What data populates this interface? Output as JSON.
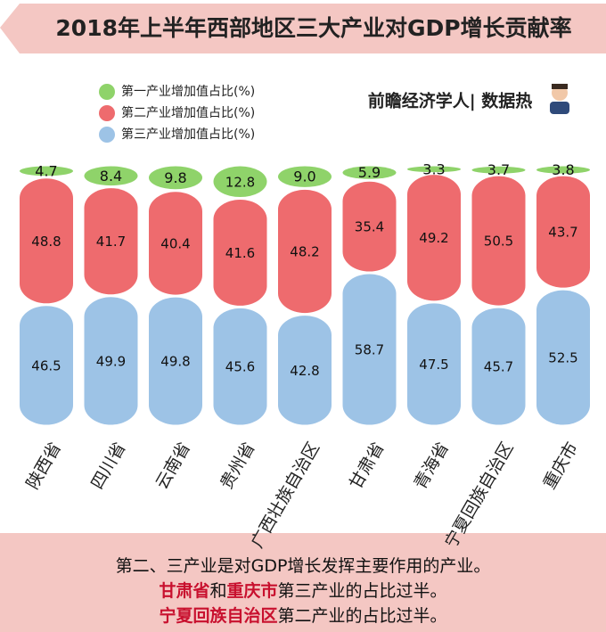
{
  "chart_data": {
    "type": "stacked-bar",
    "title": "2018年上半年西部地区三大产业对GDP增长贡献率",
    "brand": "前瞻经济学人| 数据热",
    "categories": [
      "陕西省",
      "四川省",
      "云南省",
      "贵州省",
      "广西壮族自治区",
      "甘肃省",
      "青海省",
      "宁夏回族自治区",
      "重庆市"
    ],
    "series": [
      {
        "name": "第一产业增加值占比(%)",
        "color": "#8fd36a",
        "values": [
          4.7,
          8.4,
          9.8,
          12.8,
          9.0,
          5.9,
          3.3,
          3.7,
          3.8
        ],
        "value_labels": [
          "4.7",
          "8.4",
          "9.8",
          "12.8",
          "9.0",
          "5.9",
          "3.3",
          "3.7",
          "3.8"
        ]
      },
      {
        "name": "第二产业增加值占比(%)",
        "color": "#ee6b6e",
        "values": [
          48.8,
          41.7,
          40.4,
          41.6,
          48.2,
          35.4,
          49.2,
          50.5,
          43.7
        ]
      },
      {
        "name": "第三产业增加值占比(%)",
        "color": "#9dc3e6",
        "values": [
          46.5,
          49.9,
          49.8,
          45.6,
          42.8,
          58.7,
          47.5,
          45.7,
          52.5
        ]
      }
    ]
  },
  "footer": {
    "lines": [
      [
        {
          "text": "第二、三产业是对GDP增长发挥主要作用的产业。",
          "color": "#111111"
        }
      ],
      [
        {
          "text": "甘肃省",
          "color": "#c8102e"
        },
        {
          "text": "和",
          "color": "#111111"
        },
        {
          "text": "重庆市",
          "color": "#c8102e"
        },
        {
          "text": "第三产业的占比过半。",
          "color": "#111111"
        }
      ],
      [
        {
          "text": "宁夏回族自治区",
          "color": "#c8102e"
        },
        {
          "text": "第二产业的占比过半。",
          "color": "#111111"
        }
      ]
    ]
  }
}
